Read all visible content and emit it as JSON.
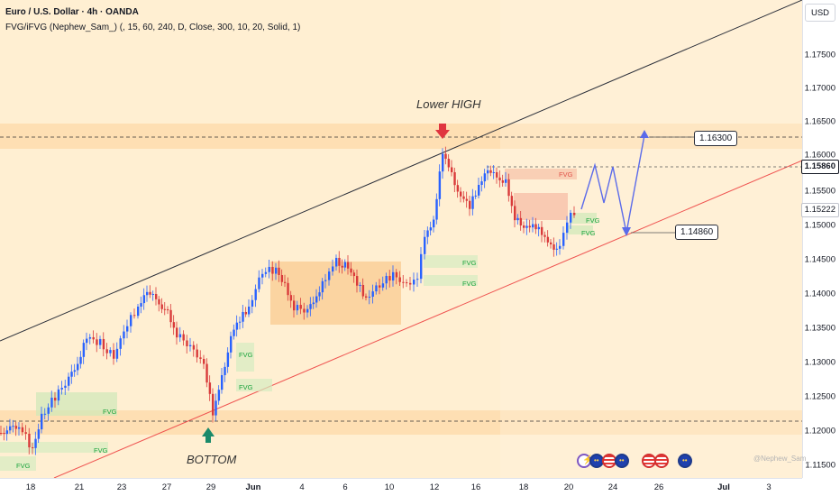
{
  "header": {
    "title": "Euro / U.S. Dollar · 4h · OANDA",
    "indicator": "FVG/iFVG (Nephew_Sam_) (, 15, 60, 240, D, Close, 300, 10, 20, Solid, 1)"
  },
  "currency_button": "USD",
  "price_axis": {
    "ticks": [
      "1.17500",
      "1.17000",
      "1.16500",
      "1.16000",
      "1.15500",
      "1.15000",
      "1.14500",
      "1.14000",
      "1.13500",
      "1.13000",
      "1.12500",
      "1.12000",
      "1.11500"
    ],
    "tags": {
      "level_label": "1.15860",
      "last_price": "1.15222"
    }
  },
  "time_axis": {
    "ticks": [
      "18",
      "21",
      "23",
      "27",
      "29",
      "Jun",
      "4",
      "6",
      "10",
      "12",
      "16",
      "18",
      "20",
      "24",
      "26",
      "Jul",
      "3"
    ]
  },
  "annotations": {
    "lower_high": "Lower HIGH",
    "bottom": "BOTTOM",
    "target_label": "1.16300",
    "support_label": "1.14860"
  },
  "fvg_labels": [
    {
      "text": "FVG",
      "color": "green"
    },
    {
      "text": "FVG",
      "color": "green"
    },
    {
      "text": "FVG",
      "color": "green"
    },
    {
      "text": "FVG",
      "color": "green"
    },
    {
      "text": "FVG",
      "color": "green"
    },
    {
      "text": "FVG",
      "color": "green"
    },
    {
      "text": "FVG",
      "color": "green"
    },
    {
      "text": "FVG",
      "color": "red"
    },
    {
      "text": "FVG",
      "color": "green"
    },
    {
      "text": "FVG",
      "color": "green"
    }
  ],
  "events": {
    "icons": [
      "lightning-icon",
      "eu-flag-icon",
      "us-flag-icon",
      "eu-flag-icon",
      "us-flag-icon",
      "us-flag-icon",
      "eu-flag-icon",
      "eu-flag-icon"
    ]
  },
  "watermark": "@Nephew_Sam_",
  "colors": {
    "up_candle": "#2962ff",
    "down_candle": "#d93a3a",
    "zone": "#fdd9a8",
    "upper_trend": "#2a2e39",
    "lower_trend": "#ef5350",
    "projection": "#5b6bea",
    "arrow_down": "#e0353f",
    "arrow_up": "#1a8a6a"
  }
}
